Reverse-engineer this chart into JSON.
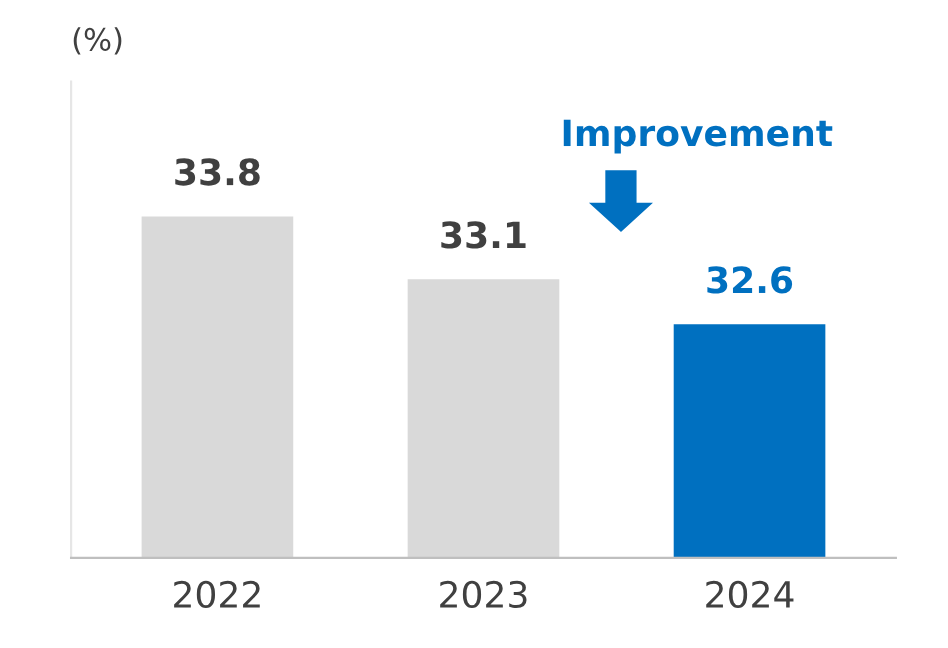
{
  "chart_data": {
    "type": "bar",
    "ylabel": "(%)",
    "categories": [
      "2022",
      "2023",
      "2024"
    ],
    "values": [
      33.8,
      33.1,
      32.6
    ],
    "colors": [
      "#d9d9d9",
      "#d9d9d9",
      "#0070c0"
    ],
    "ylim": [
      30,
      35.3
    ],
    "data_labels": true,
    "tick_labels": "x",
    "annotations": [
      "Improvement"
    ]
  }
}
